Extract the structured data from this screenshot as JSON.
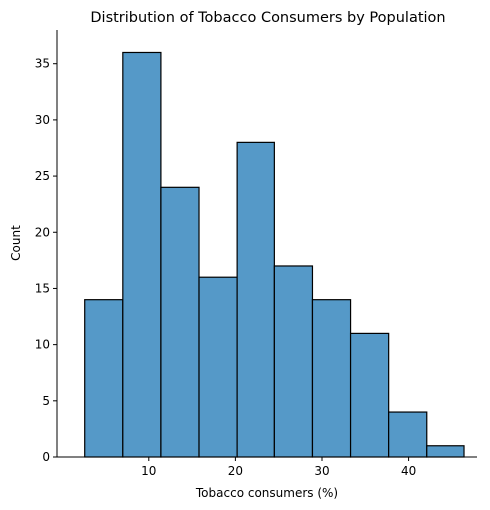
{
  "chart_data": {
    "type": "bar",
    "title": "Distribution of Tobacco Consumers by Population",
    "xlabel": "Tobacco consumers (%)",
    "ylabel": "Count",
    "bin_edges": [
      2.6,
      7.0,
      11.4,
      15.8,
      20.2,
      24.5,
      28.9,
      33.3,
      37.7,
      42.1,
      46.4
    ],
    "values": [
      14,
      36,
      24,
      16,
      28,
      17,
      14,
      11,
      4,
      1
    ],
    "xlim": [
      -0.6,
      47.9
    ],
    "ylim": [
      0,
      38
    ],
    "xticks": [
      10,
      20,
      30,
      40
    ],
    "yticks": [
      0,
      5,
      10,
      15,
      20,
      25,
      30,
      35
    ],
    "grid": false,
    "legend": "none",
    "colors": {
      "bar_fill": "#5599c8",
      "bar_edge": "#000000"
    }
  }
}
